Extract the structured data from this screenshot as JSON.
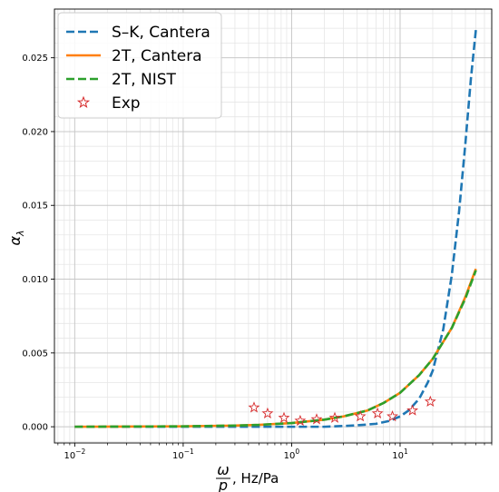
{
  "chart_data": {
    "type": "line",
    "xscale": "log",
    "xlim": [
      0.0065,
      70
    ],
    "ylim": [
      -0.0011,
      0.0283
    ],
    "grid": true,
    "legend_position": "top-left",
    "xlabel": {
      "num": "ω",
      "den": "p",
      "suffix": ", Hz/Pa"
    },
    "ylabel": {
      "base": "α",
      "sub": "λ"
    },
    "x_ticks": [
      {
        "value": 0.01,
        "base": "10",
        "exp": "−2"
      },
      {
        "value": 0.1,
        "base": "10",
        "exp": "−1"
      },
      {
        "value": 1,
        "base": "10",
        "exp": "0"
      },
      {
        "value": 10,
        "base": "10",
        "exp": "1"
      }
    ],
    "y_ticks": [
      {
        "value": 0.0,
        "label": "0.000"
      },
      {
        "value": 0.005,
        "label": "0.005"
      },
      {
        "value": 0.01,
        "label": "0.010"
      },
      {
        "value": 0.015,
        "label": "0.015"
      },
      {
        "value": 0.02,
        "label": "0.020"
      },
      {
        "value": 0.025,
        "label": "0.025"
      }
    ],
    "series": [
      {
        "name": "S–K, Cantera",
        "color": "#1f77b4",
        "style": "dashed",
        "x": [
          0.01,
          0.1,
          0.5,
          1,
          2,
          3,
          4,
          5,
          6,
          8,
          10,
          12,
          15,
          18,
          20,
          25,
          30,
          35,
          40,
          45,
          50
        ],
        "y": [
          0.0,
          0.0,
          0.0,
          0.0,
          0.0,
          5e-05,
          0.0001,
          0.00015,
          0.0002,
          0.0004,
          0.0007,
          0.0011,
          0.0019,
          0.003,
          0.0038,
          0.0066,
          0.0103,
          0.0146,
          0.0192,
          0.0236,
          0.0269
        ]
      },
      {
        "name": "2T, Cantera",
        "color": "#ff7f0e",
        "style": "solid",
        "x": [
          0.01,
          0.1,
          0.3,
          0.5,
          1,
          2,
          3,
          5,
          7,
          10,
          15,
          20,
          30,
          40,
          50
        ],
        "y": [
          0.0,
          3e-05,
          8e-05,
          0.00013,
          0.00025,
          0.00048,
          0.0007,
          0.0011,
          0.0016,
          0.0023,
          0.0035,
          0.0046,
          0.0067,
          0.0088,
          0.0107
        ]
      },
      {
        "name": "2T, NIST",
        "color": "#2ca02c",
        "style": "dashed",
        "x": [
          0.01,
          0.1,
          0.3,
          0.5,
          1,
          2,
          3,
          5,
          7,
          10,
          15,
          20,
          30,
          40,
          50
        ],
        "y": [
          0.0,
          3e-05,
          8e-05,
          0.00013,
          0.00025,
          0.00048,
          0.0007,
          0.0011,
          0.0016,
          0.0023,
          0.0035,
          0.0046,
          0.0067,
          0.0087,
          0.0106
        ]
      },
      {
        "name": "Exp",
        "color": "#d62728",
        "style": "star-markers",
        "x": [
          0.45,
          0.6,
          0.85,
          1.2,
          1.7,
          2.5,
          4.3,
          6.2,
          8.5,
          13,
          19
        ],
        "y": [
          0.0013,
          0.0009,
          0.0006,
          0.0004,
          0.0005,
          0.0006,
          0.0007,
          0.0009,
          0.0007,
          0.0011,
          0.0017
        ]
      }
    ]
  }
}
